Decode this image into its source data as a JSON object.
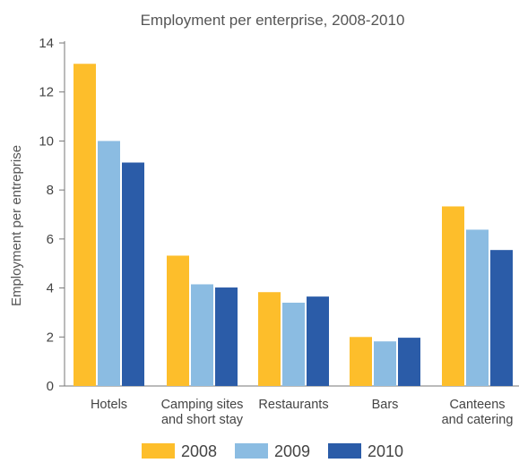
{
  "chart_data": {
    "type": "bar",
    "title": "Employment per enterprise, 2008-2010",
    "xlabel": "",
    "ylabel": "Employment per entreprise",
    "ylim": [
      0,
      14
    ],
    "yticks": [
      0,
      2,
      4,
      6,
      8,
      10,
      12,
      14
    ],
    "grid": false,
    "legend_position": "bottom",
    "categories": [
      [
        "Hotels"
      ],
      [
        "Camping sites",
        "and short stay"
      ],
      [
        "Restaurants"
      ],
      [
        "Bars"
      ],
      [
        "Canteens",
        "and catering"
      ]
    ],
    "series": [
      {
        "name": "2008",
        "color": "#FDBE2B",
        "values": [
          13.15,
          5.32,
          3.83,
          2.0,
          7.33
        ]
      },
      {
        "name": "2009",
        "color": "#8BBCE2",
        "values": [
          10.0,
          4.15,
          3.4,
          1.82,
          6.38
        ]
      },
      {
        "name": "2010",
        "color": "#2B5CA8",
        "values": [
          9.12,
          4.02,
          3.65,
          1.97,
          5.55
        ]
      }
    ]
  }
}
